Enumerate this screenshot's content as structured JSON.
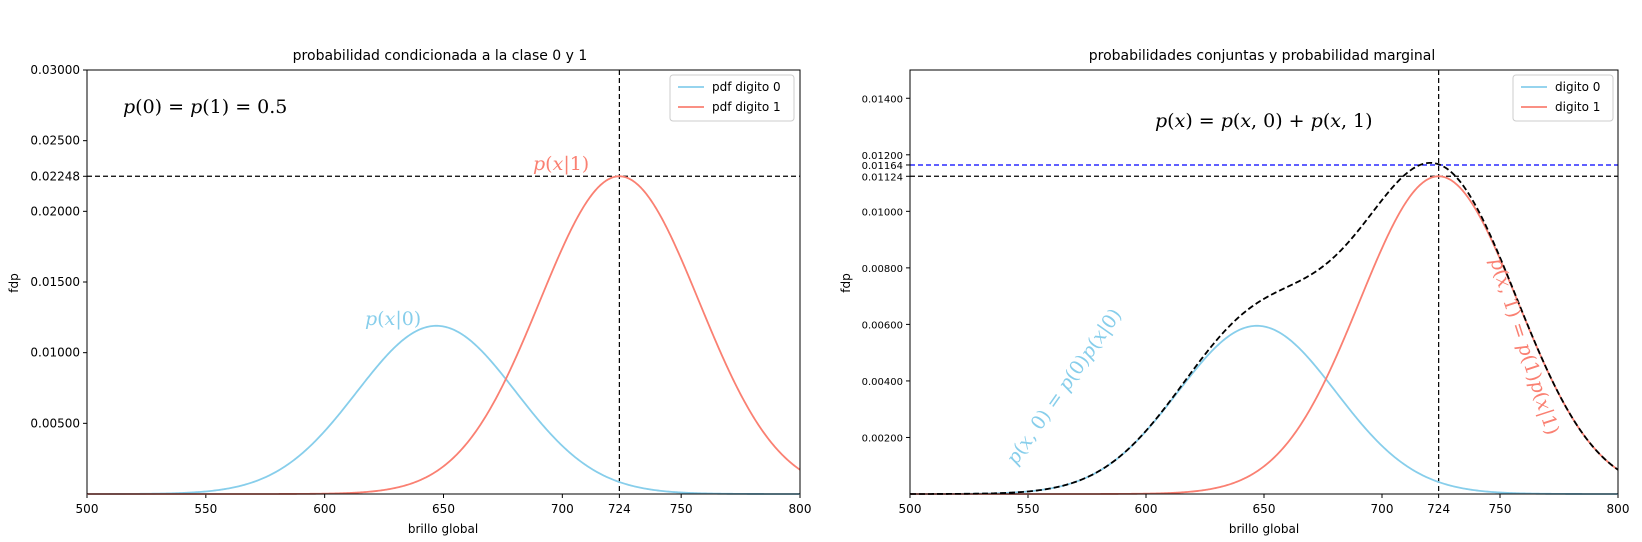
{
  "chart_data": [
    {
      "type": "line",
      "title": "probabilidad condicionada a la clase 0 y 1",
      "xlabel": "brillo global",
      "ylabel": "fdp",
      "xlim": [
        500,
        800
      ],
      "ylim": [
        0,
        0.03
      ],
      "x_ticks": [
        "500",
        "550",
        "600",
        "650",
        "700",
        "724",
        "750",
        "800"
      ],
      "x_tick_values": [
        500,
        550,
        600,
        650,
        700,
        724,
        750,
        800
      ],
      "y_ticks": [
        "0.00500",
        "0.01000",
        "0.01500",
        "0.02000",
        "0.02248",
        "0.02500",
        "0.03000"
      ],
      "y_tick_values": [
        0.005,
        0.01,
        0.015,
        0.02,
        0.02248,
        0.025,
        0.03
      ],
      "legend_position": "top-right",
      "series": [
        {
          "name": "pdf digito 0",
          "color": "#87ceeb",
          "dist": "normal",
          "mean": 647,
          "peak": 0.0119
        },
        {
          "name": "pdf digito 1",
          "color": "#fa8072",
          "dist": "normal",
          "mean": 724,
          "peak": 0.02248
        }
      ],
      "reference_lines": [
        {
          "orientation": "vertical",
          "value": 724,
          "color": "#000000",
          "style": "dashed"
        },
        {
          "orientation": "horizontal",
          "value": 0.02248,
          "color": "#000000",
          "style": "dashed"
        }
      ],
      "annotations": [
        {
          "text": "p(0) = p(1) = 0.5",
          "color": "#000000"
        },
        {
          "text": "p(x|1)",
          "color": "#fa8072"
        },
        {
          "text": "p(x|0)",
          "color": "#87ceeb"
        }
      ]
    },
    {
      "type": "line",
      "title": "probabilidades conjuntas y probabilidad marginal",
      "xlabel": "brillo global",
      "ylabel": "fdp",
      "xlim": [
        500,
        800
      ],
      "ylim": [
        0,
        0.015
      ],
      "x_ticks": [
        "500",
        "550",
        "600",
        "650",
        "700",
        "724",
        "750",
        "800"
      ],
      "x_tick_values": [
        500,
        550,
        600,
        650,
        700,
        724,
        750,
        800
      ],
      "y_ticks": [
        "0.00200",
        "0.00400",
        "0.00600",
        "0.00800",
        "0.01000",
        "0.01124",
        "0.01164",
        "0.01200",
        "0.01400"
      ],
      "y_tick_values": [
        0.002,
        0.004,
        0.006,
        0.008,
        0.01,
        0.01124,
        0.01164,
        0.012,
        0.014
      ],
      "legend_position": "top-right",
      "series": [
        {
          "name": "digito 0",
          "color": "#87ceeb",
          "dist": "normal",
          "mean": 647,
          "peak": 0.00595
        },
        {
          "name": "digito 1",
          "color": "#fa8072",
          "dist": "normal",
          "mean": 724,
          "peak": 0.01124
        },
        {
          "color": "#000000",
          "style": "dashed",
          "kind": "sum"
        }
      ],
      "reference_lines": [
        {
          "orientation": "vertical",
          "value": 724,
          "color": "#000000",
          "style": "dashed"
        },
        {
          "orientation": "horizontal",
          "value": 0.01124,
          "color": "#000000",
          "style": "dashed"
        },
        {
          "orientation": "horizontal",
          "value": 0.01164,
          "color": "#0000ff",
          "style": "dashed"
        }
      ],
      "annotations": [
        {
          "text": "p(x) = p(x, 0) + p(x, 1)",
          "color": "#000000"
        },
        {
          "text": "p(x, 0) = p(0)p(x|0)",
          "color": "#87ceeb"
        },
        {
          "text": "p(x, 1) = p(1)p(x|1)",
          "color": "#fa8072"
        }
      ]
    }
  ]
}
